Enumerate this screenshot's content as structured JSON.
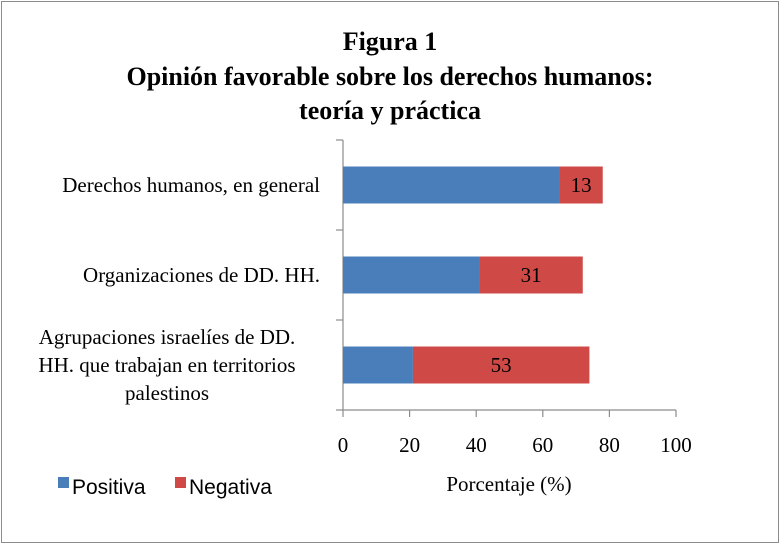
{
  "chart_data": {
    "type": "bar",
    "orientation": "horizontal",
    "stacked": true,
    "title_lines": [
      "Figura 1",
      "Opinión favorable sobre los derechos humanos:",
      "teoría y práctica"
    ],
    "categories": [
      [
        "Derechos humanos, en general"
      ],
      [
        "Organizaciones de DD. HH."
      ],
      [
        "Agrupaciones israelíes de DD.",
        "HH. que trabajan en territorios",
        "palestinos"
      ]
    ],
    "series": [
      {
        "name": "Positiva",
        "color": "#4a7ebb",
        "values": [
          65,
          41,
          21
        ],
        "show_labels": false
      },
      {
        "name": "Negativa",
        "color": "#cf4a47",
        "values": [
          13,
          31,
          53
        ],
        "show_labels": true
      }
    ],
    "xlabel": "Porcentaje (%)",
    "xlim": [
      0,
      100
    ],
    "xticks": [
      0,
      20,
      40,
      60,
      80,
      100
    ],
    "grid": false,
    "legend_position": "bottom-left"
  }
}
